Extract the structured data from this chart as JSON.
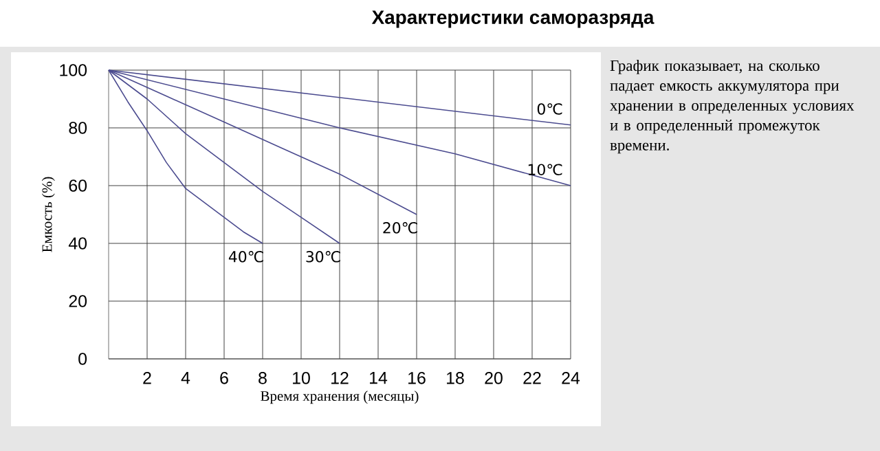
{
  "chart_data": {
    "type": "line",
    "title": "Характеристики саморазряда",
    "xlabel": "Время хранения (месяцы)",
    "ylabel": "Емкость (%)",
    "xlim": [
      0,
      24
    ],
    "ylim": [
      0,
      100
    ],
    "xticks": [
      2,
      4,
      6,
      8,
      10,
      12,
      14,
      16,
      18,
      20,
      22,
      24
    ],
    "yticks": [
      0,
      20,
      40,
      60,
      80,
      100
    ],
    "grid": true,
    "series": [
      {
        "name": "0℃",
        "color": "#4b4b8f",
        "x": [
          0,
          24
        ],
        "values": [
          100,
          81
        ]
      },
      {
        "name": "10℃",
        "color": "#4b4b8f",
        "x": [
          0,
          6,
          12,
          18,
          24
        ],
        "values": [
          100,
          90,
          80,
          71,
          60
        ]
      },
      {
        "name": "20℃",
        "color": "#4b4b8f",
        "x": [
          0,
          3,
          6,
          9,
          12,
          16
        ],
        "values": [
          100,
          91,
          82,
          73,
          64,
          50
        ]
      },
      {
        "name": "30℃",
        "color": "#4b4b8f",
        "x": [
          0,
          2,
          4,
          6,
          8,
          10,
          12
        ],
        "values": [
          100,
          90,
          78,
          68,
          58,
          49,
          40
        ]
      },
      {
        "name": "40℃",
        "color": "#4b4b8f",
        "x": [
          0,
          1,
          2,
          3,
          4,
          5,
          6,
          7,
          8
        ],
        "values": [
          100,
          89,
          79,
          68,
          59,
          54,
          49,
          44,
          40
        ]
      }
    ],
    "annotations": [
      "График показывает, на сколько падает емкость аккумулятора при хранении в определенных условиях и в определенный промежуток времени."
    ]
  }
}
